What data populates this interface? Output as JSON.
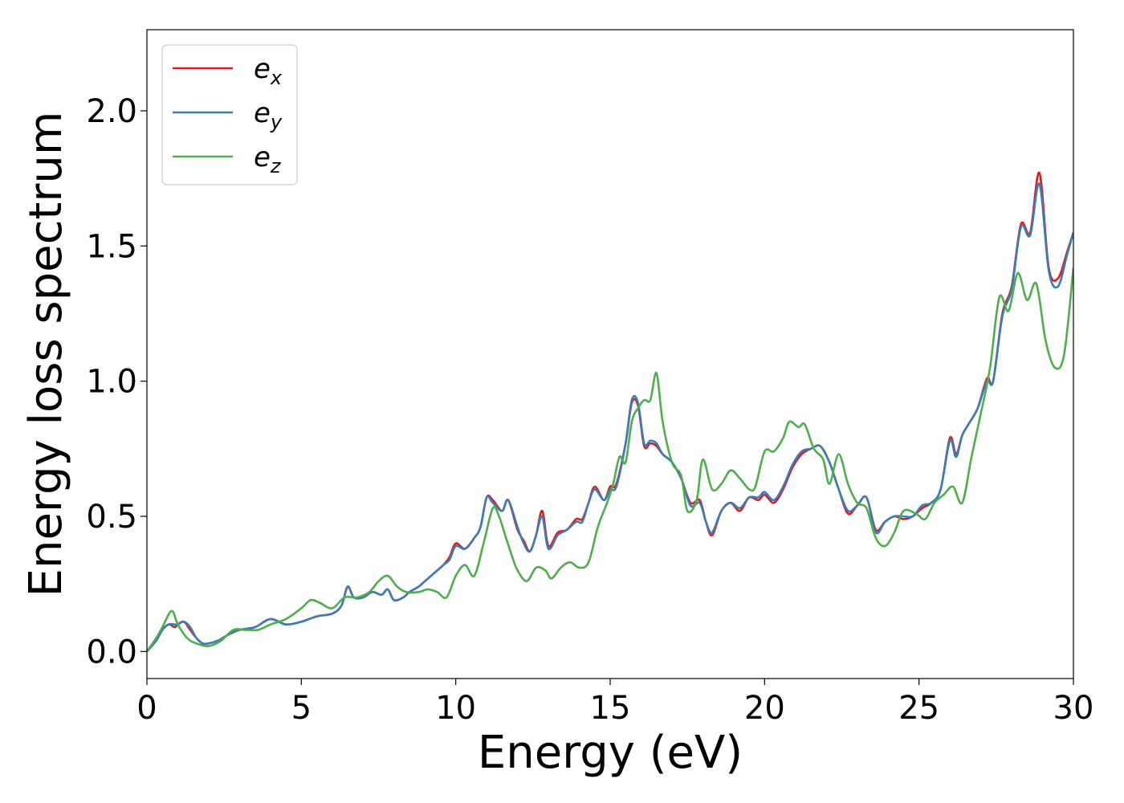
{
  "chart_data": {
    "type": "line",
    "title": "",
    "xlabel": "Energy (eV)",
    "ylabel": "Energy loss spectrum",
    "xlim": [
      0,
      30
    ],
    "ylim": [
      -0.1,
      2.3
    ],
    "x_ticks": [
      0,
      5,
      10,
      15,
      20,
      25,
      30
    ],
    "x_tick_labels": [
      "0",
      "5",
      "10",
      "15",
      "20",
      "25",
      "30"
    ],
    "y_ticks": [
      0.0,
      0.5,
      1.0,
      1.5,
      2.0
    ],
    "y_tick_labels": [
      "0.0",
      "0.5",
      "1.0",
      "1.5",
      "2.0"
    ],
    "grid": false,
    "legend_position": "top-left",
    "series": [
      {
        "name": "e",
        "subscript": "x",
        "color": "#e41a1c",
        "x": [
          0,
          0.3,
          0.5,
          0.7,
          0.9,
          1.0,
          1.2,
          1.4,
          1.6,
          1.8,
          2.0,
          2.3,
          2.6,
          3.0,
          3.5,
          4.0,
          4.5,
          5.0,
          5.5,
          6.0,
          6.3,
          6.5,
          6.7,
          7.0,
          7.3,
          7.6,
          7.8,
          8.0,
          8.3,
          8.5,
          8.8,
          9.0,
          9.3,
          9.6,
          9.8,
          10.0,
          10.3,
          10.6,
          10.8,
          11.0,
          11.2,
          11.5,
          11.7,
          12.0,
          12.2,
          12.4,
          12.6,
          12.8,
          13.0,
          13.3,
          13.6,
          13.9,
          14.1,
          14.3,
          14.5,
          14.8,
          15.0,
          15.2,
          15.5,
          15.7,
          15.9,
          16.1,
          16.3,
          16.5,
          16.7,
          17.0,
          17.3,
          17.6,
          17.9,
          18.1,
          18.3,
          18.6,
          18.9,
          19.2,
          19.5,
          19.8,
          20.0,
          20.3,
          20.6,
          20.9,
          21.2,
          21.5,
          21.8,
          22.1,
          22.4,
          22.7,
          23.0,
          23.3,
          23.6,
          23.9,
          24.2,
          24.5,
          24.8,
          25.1,
          25.4,
          25.7,
          26.0,
          26.2,
          26.4,
          26.6,
          26.9,
          27.2,
          27.4,
          27.7,
          28.0,
          28.3,
          28.6,
          28.9,
          29.2,
          29.5,
          29.8,
          30.0
        ],
        "y": [
          0.0,
          0.04,
          0.08,
          0.1,
          0.09,
          0.1,
          0.11,
          0.08,
          0.05,
          0.03,
          0.03,
          0.04,
          0.06,
          0.08,
          0.09,
          0.12,
          0.1,
          0.11,
          0.13,
          0.14,
          0.17,
          0.24,
          0.2,
          0.2,
          0.22,
          0.21,
          0.23,
          0.19,
          0.2,
          0.22,
          0.24,
          0.26,
          0.29,
          0.32,
          0.35,
          0.4,
          0.38,
          0.42,
          0.46,
          0.57,
          0.56,
          0.52,
          0.56,
          0.45,
          0.41,
          0.37,
          0.43,
          0.52,
          0.39,
          0.44,
          0.45,
          0.49,
          0.49,
          0.55,
          0.61,
          0.56,
          0.61,
          0.62,
          0.77,
          0.92,
          0.91,
          0.76,
          0.77,
          0.76,
          0.73,
          0.7,
          0.64,
          0.55,
          0.56,
          0.48,
          0.43,
          0.52,
          0.55,
          0.52,
          0.57,
          0.56,
          0.58,
          0.55,
          0.6,
          0.68,
          0.73,
          0.75,
          0.76,
          0.7,
          0.6,
          0.51,
          0.54,
          0.57,
          0.45,
          0.48,
          0.5,
          0.49,
          0.5,
          0.53,
          0.55,
          0.6,
          0.79,
          0.73,
          0.8,
          0.84,
          0.9,
          1.01,
          1.0,
          1.25,
          1.35,
          1.58,
          1.55,
          1.77,
          1.42,
          1.38,
          1.48,
          1.55
        ]
      },
      {
        "name": "e",
        "subscript": "y",
        "color": "#377eb8",
        "x": [
          0,
          0.3,
          0.5,
          0.7,
          0.9,
          1.0,
          1.2,
          1.4,
          1.6,
          1.8,
          2.0,
          2.3,
          2.6,
          3.0,
          3.5,
          4.0,
          4.5,
          5.0,
          5.5,
          6.0,
          6.3,
          6.5,
          6.7,
          7.0,
          7.3,
          7.6,
          7.8,
          8.0,
          8.3,
          8.5,
          8.8,
          9.0,
          9.3,
          9.6,
          9.8,
          10.0,
          10.3,
          10.6,
          10.8,
          11.0,
          11.2,
          11.5,
          11.7,
          12.0,
          12.2,
          12.4,
          12.6,
          12.8,
          13.0,
          13.3,
          13.6,
          13.9,
          14.1,
          14.3,
          14.5,
          14.8,
          15.0,
          15.2,
          15.5,
          15.7,
          15.9,
          16.1,
          16.3,
          16.5,
          16.7,
          17.0,
          17.3,
          17.6,
          17.9,
          18.1,
          18.3,
          18.6,
          18.9,
          19.2,
          19.5,
          19.8,
          20.0,
          20.3,
          20.6,
          20.9,
          21.2,
          21.5,
          21.8,
          22.1,
          22.4,
          22.7,
          23.0,
          23.3,
          23.6,
          23.9,
          24.2,
          24.5,
          24.8,
          25.1,
          25.4,
          25.7,
          26.0,
          26.2,
          26.4,
          26.6,
          26.9,
          27.2,
          27.4,
          27.7,
          28.0,
          28.3,
          28.6,
          28.9,
          29.2,
          29.5,
          29.8,
          30.0
        ],
        "y": [
          0.0,
          0.04,
          0.08,
          0.1,
          0.1,
          0.1,
          0.11,
          0.09,
          0.05,
          0.03,
          0.03,
          0.04,
          0.06,
          0.08,
          0.09,
          0.12,
          0.1,
          0.11,
          0.13,
          0.14,
          0.17,
          0.24,
          0.2,
          0.2,
          0.22,
          0.21,
          0.23,
          0.19,
          0.2,
          0.22,
          0.24,
          0.26,
          0.29,
          0.32,
          0.34,
          0.39,
          0.38,
          0.42,
          0.46,
          0.57,
          0.55,
          0.52,
          0.56,
          0.46,
          0.4,
          0.37,
          0.43,
          0.5,
          0.38,
          0.43,
          0.45,
          0.48,
          0.48,
          0.55,
          0.6,
          0.56,
          0.6,
          0.61,
          0.77,
          0.93,
          0.92,
          0.77,
          0.78,
          0.77,
          0.73,
          0.7,
          0.64,
          0.54,
          0.55,
          0.48,
          0.44,
          0.52,
          0.55,
          0.53,
          0.57,
          0.57,
          0.59,
          0.56,
          0.61,
          0.69,
          0.74,
          0.75,
          0.76,
          0.7,
          0.6,
          0.52,
          0.54,
          0.57,
          0.44,
          0.48,
          0.5,
          0.5,
          0.5,
          0.54,
          0.55,
          0.6,
          0.78,
          0.72,
          0.8,
          0.84,
          0.9,
          1.0,
          1.0,
          1.24,
          1.34,
          1.57,
          1.54,
          1.73,
          1.41,
          1.35,
          1.47,
          1.55
        ]
      },
      {
        "name": "e",
        "subscript": "z",
        "color": "#4daf4a",
        "x": [
          0,
          0.3,
          0.5,
          0.8,
          1.0,
          1.3,
          1.6,
          2.0,
          2.4,
          2.8,
          3.2,
          3.6,
          4.0,
          4.5,
          5.0,
          5.3,
          5.6,
          6.0,
          6.4,
          6.8,
          7.2,
          7.5,
          7.8,
          8.1,
          8.4,
          8.8,
          9.1,
          9.4,
          9.7,
          10.0,
          10.3,
          10.6,
          10.9,
          11.2,
          11.4,
          11.6,
          11.8,
          12.0,
          12.3,
          12.6,
          12.9,
          13.1,
          13.4,
          13.7,
          14.0,
          14.3,
          14.6,
          14.9,
          15.1,
          15.3,
          15.5,
          15.7,
          15.9,
          16.1,
          16.3,
          16.5,
          16.7,
          17.0,
          17.3,
          17.5,
          17.8,
          18.0,
          18.3,
          18.6,
          18.9,
          19.2,
          19.5,
          19.7,
          20.0,
          20.3,
          20.6,
          20.8,
          21.1,
          21.3,
          21.6,
          21.9,
          22.1,
          22.4,
          22.7,
          23.0,
          23.3,
          23.6,
          23.9,
          24.2,
          24.5,
          24.9,
          25.2,
          25.5,
          25.8,
          26.1,
          26.4,
          26.7,
          27.0,
          27.3,
          27.6,
          27.9,
          28.2,
          28.5,
          28.8,
          29.1,
          29.4,
          29.7,
          30.0
        ],
        "y": [
          0.0,
          0.05,
          0.09,
          0.15,
          0.1,
          0.05,
          0.03,
          0.02,
          0.04,
          0.08,
          0.08,
          0.08,
          0.1,
          0.12,
          0.16,
          0.19,
          0.18,
          0.16,
          0.2,
          0.2,
          0.22,
          0.26,
          0.28,
          0.24,
          0.22,
          0.22,
          0.23,
          0.22,
          0.2,
          0.28,
          0.32,
          0.28,
          0.4,
          0.53,
          0.5,
          0.43,
          0.36,
          0.3,
          0.26,
          0.31,
          0.3,
          0.27,
          0.31,
          0.33,
          0.31,
          0.33,
          0.46,
          0.55,
          0.62,
          0.72,
          0.7,
          0.85,
          0.9,
          0.93,
          0.93,
          1.03,
          0.85,
          0.7,
          0.65,
          0.52,
          0.56,
          0.71,
          0.6,
          0.62,
          0.67,
          0.64,
          0.6,
          0.61,
          0.74,
          0.74,
          0.79,
          0.85,
          0.83,
          0.84,
          0.75,
          0.71,
          0.62,
          0.73,
          0.62,
          0.55,
          0.53,
          0.42,
          0.39,
          0.44,
          0.52,
          0.51,
          0.49,
          0.55,
          0.58,
          0.61,
          0.55,
          0.72,
          0.88,
          1.05,
          1.31,
          1.26,
          1.4,
          1.3,
          1.36,
          1.15,
          1.05,
          1.1,
          1.42
        ]
      }
    ]
  }
}
